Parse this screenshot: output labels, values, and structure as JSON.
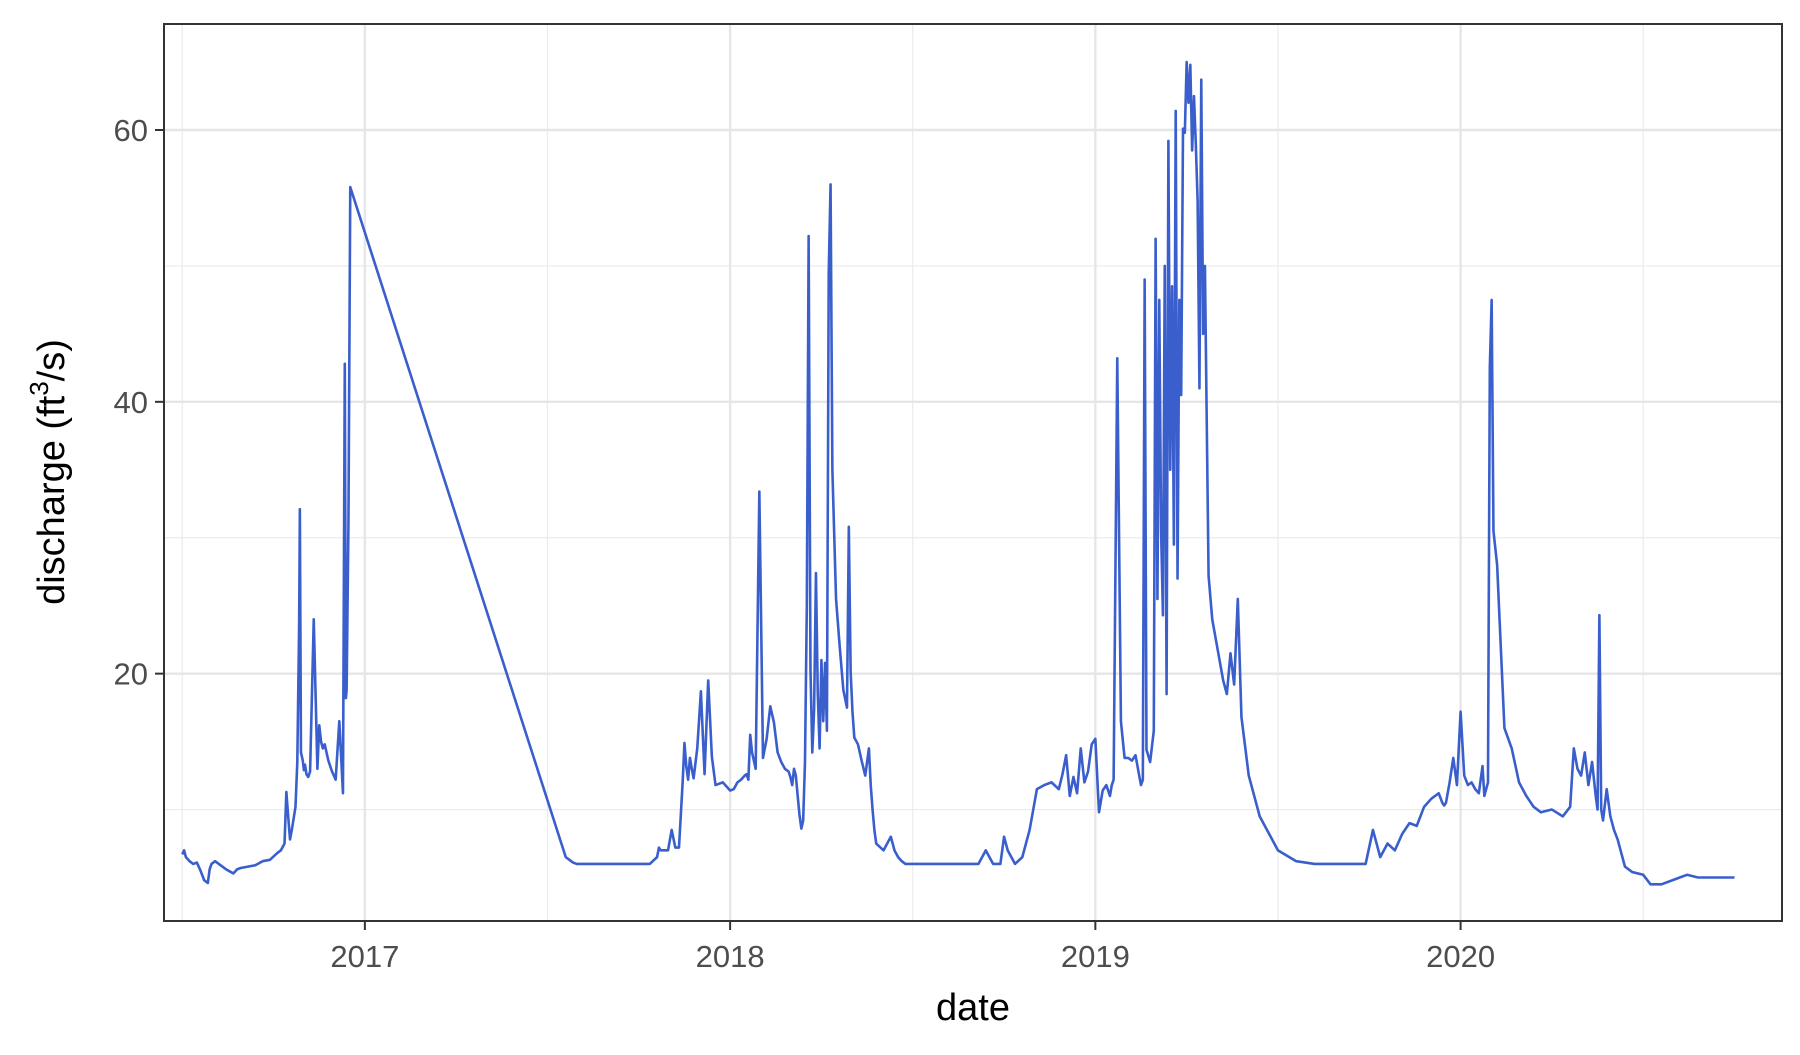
{
  "chart_data": {
    "type": "line",
    "xlabel": "date",
    "ylabel_main": "discharge (ft",
    "ylabel_sup": "3",
    "ylabel_tail": "/s)",
    "x_ticks": [
      "2017",
      "2018",
      "2019",
      "2020"
    ],
    "y_ticks": [
      "20",
      "40",
      "60"
    ],
    "xlim": [
      2016.45,
      2020.88
    ],
    "ylim": [
      1.8,
      67.8
    ],
    "grid": true,
    "legend": "none",
    "line_color": "#3a5fcd",
    "x": [
      2016.5,
      2016.505,
      2016.51,
      2016.52,
      2016.53,
      2016.54,
      2016.55,
      2016.56,
      2016.57,
      2016.575,
      2016.58,
      2016.59,
      2016.6,
      2016.62,
      2016.64,
      2016.65,
      2016.66,
      2016.68,
      2016.7,
      2016.72,
      2016.74,
      2016.76,
      2016.77,
      2016.78,
      2016.785,
      2016.79,
      2016.795,
      2016.8,
      2016.81,
      2016.815,
      2016.82,
      2016.822,
      2016.825,
      2016.83,
      2016.833,
      2016.836,
      2016.84,
      2016.845,
      2016.85,
      2016.86,
      2016.87,
      2016.875,
      2016.88,
      2016.885,
      2016.89,
      2016.9,
      2016.91,
      2016.92,
      2016.93,
      2016.94,
      2016.945,
      2016.948,
      2016.95,
      2016.955,
      2016.96,
      2017.55,
      2017.56,
      2017.57,
      2017.58,
      2017.6,
      2017.65,
      2017.7,
      2017.75,
      2017.78,
      2017.8,
      2017.805,
      2017.81,
      2017.82,
      2017.83,
      2017.84,
      2017.85,
      2017.86,
      2017.87,
      2017.875,
      2017.88,
      2017.885,
      2017.89,
      2017.895,
      2017.9,
      2017.91,
      2017.92,
      2017.93,
      2017.94,
      2017.95,
      2017.96,
      2017.98,
      2018.0,
      2018.01,
      2018.02,
      2018.03,
      2018.04,
      2018.045,
      2018.05,
      2018.055,
      2018.06,
      2018.07,
      2018.08,
      2018.09,
      2018.1,
      2018.11,
      2018.12,
      2018.13,
      2018.14,
      2018.15,
      2018.16,
      2018.165,
      2018.17,
      2018.175,
      2018.18,
      2018.185,
      2018.19,
      2018.195,
      2018.2,
      2018.205,
      2018.21,
      2018.215,
      2018.22,
      2018.225,
      2018.23,
      2018.235,
      2018.24,
      2018.245,
      2018.25,
      2018.255,
      2018.26,
      2018.265,
      2018.27,
      2018.275,
      2018.28,
      2018.29,
      2018.3,
      2018.31,
      2018.32,
      2018.325,
      2018.33,
      2018.335,
      2018.34,
      2018.35,
      2018.36,
      2018.37,
      2018.38,
      2018.385,
      2018.39,
      2018.395,
      2018.4,
      2018.42,
      2018.44,
      2018.45,
      2018.46,
      2018.47,
      2018.48,
      2018.5,
      2018.52,
      2018.55,
      2018.6,
      2018.65,
      2018.68,
      2018.7,
      2018.72,
      2018.74,
      2018.75,
      2018.76,
      2018.78,
      2018.8,
      2018.82,
      2018.84,
      2018.86,
      2018.88,
      2018.9,
      2018.91,
      2018.92,
      2018.93,
      2018.94,
      2018.95,
      2018.96,
      2018.97,
      2018.98,
      2018.99,
      2019.0,
      2019.01,
      2019.02,
      2019.03,
      2019.04,
      2019.045,
      2019.05,
      2019.06,
      2019.07,
      2019.08,
      2019.09,
      2019.1,
      2019.11,
      2019.12,
      2019.125,
      2019.13,
      2019.135,
      2019.14,
      2019.15,
      2019.16,
      2019.165,
      2019.17,
      2019.175,
      2019.18,
      2019.185,
      2019.19,
      2019.195,
      2019.2,
      2019.205,
      2019.21,
      2019.215,
      2019.22,
      2019.225,
      2019.23,
      2019.235,
      2019.24,
      2019.245,
      2019.25,
      2019.255,
      2019.26,
      2019.265,
      2019.27,
      2019.275,
      2019.28,
      2019.285,
      2019.29,
      2019.295,
      2019.3,
      2019.305,
      2019.31,
      2019.32,
      2019.33,
      2019.34,
      2019.35,
      2019.36,
      2019.37,
      2019.38,
      2019.39,
      2019.4,
      2019.42,
      2019.45,
      2019.48,
      2019.5,
      2019.55,
      2019.6,
      2019.65,
      2019.7,
      2019.71,
      2019.72,
      2019.74,
      2019.76,
      2019.78,
      2019.8,
      2019.82,
      2019.84,
      2019.86,
      2019.88,
      2019.9,
      2019.92,
      2019.94,
      2019.95,
      2019.955,
      2019.96,
      2019.97,
      2019.98,
      2019.99,
      2020.0,
      2020.01,
      2020.02,
      2020.03,
      2020.04,
      2020.05,
      2020.06,
      2020.065,
      2020.07,
      2020.075,
      2020.08,
      2020.085,
      2020.09,
      2020.1,
      2020.12,
      2020.14,
      2020.16,
      2020.18,
      2020.2,
      2020.22,
      2020.25,
      2020.28,
      2020.3,
      2020.31,
      2020.32,
      2020.33,
      2020.34,
      2020.35,
      2020.36,
      2020.37,
      2020.375,
      2020.38,
      2020.385,
      2020.39,
      2020.4,
      2020.41,
      2020.42,
      2020.43,
      2020.44,
      2020.45,
      2020.47,
      2020.5,
      2020.52,
      2020.55,
      2020.58,
      2020.6,
      2020.62,
      2020.65,
      2020.7,
      2020.75
    ],
    "y": [
      6.7,
      7.0,
      6.5,
      6.2,
      6.0,
      6.1,
      5.5,
      4.8,
      4.6,
      5.6,
      6.0,
      6.2,
      6.0,
      5.6,
      5.3,
      5.6,
      5.7,
      5.8,
      5.9,
      6.2,
      6.3,
      6.8,
      7.0,
      7.5,
      11.3,
      9.5,
      7.8,
      8.5,
      10.2,
      13.5,
      23.6,
      32.1,
      14.2,
      13.6,
      12.9,
      13.3,
      12.6,
      12.4,
      12.8,
      24.0,
      13.0,
      16.2,
      15.0,
      14.5,
      14.8,
      13.6,
      12.8,
      12.2,
      16.5,
      11.2,
      42.8,
      18.2,
      18.8,
      31.0,
      55.8,
      6.5,
      6.3,
      6.1,
      6.0,
      6.0,
      6.0,
      6.0,
      6.0,
      6.0,
      6.5,
      7.2,
      7.0,
      7.0,
      7.0,
      8.5,
      7.2,
      7.2,
      12.0,
      14.9,
      13.2,
      12.2,
      13.8,
      13.0,
      12.3,
      14.5,
      18.7,
      12.6,
      19.5,
      13.9,
      11.8,
      12.0,
      11.4,
      11.5,
      12.0,
      12.2,
      12.5,
      12.6,
      12.2,
      15.5,
      14.2,
      13.0,
      33.4,
      13.8,
      15.2,
      17.6,
      16.4,
      14.2,
      13.5,
      13.0,
      12.8,
      12.4,
      11.8,
      13.0,
      12.5,
      11.0,
      9.6,
      8.6,
      9.2,
      13.5,
      25.0,
      52.2,
      20.3,
      14.2,
      17.4,
      27.4,
      18.5,
      14.5,
      21.0,
      16.5,
      20.8,
      15.8,
      49.5,
      56.0,
      35.0,
      25.5,
      22.0,
      18.8,
      17.5,
      30.8,
      20.1,
      17.2,
      15.3,
      14.8,
      13.6,
      12.5,
      14.5,
      11.8,
      10.0,
      8.5,
      7.5,
      7.0,
      8.0,
      7.0,
      6.5,
      6.2,
      6.0,
      6.0,
      6.0,
      6.0,
      6.0,
      6.0,
      6.0,
      7.0,
      6.0,
      6.0,
      8.0,
      7.0,
      6.0,
      6.5,
      8.5,
      11.5,
      11.8,
      12.0,
      11.5,
      12.6,
      14.0,
      11.0,
      12.4,
      11.2,
      14.5,
      12.0,
      12.8,
      14.8,
      15.2,
      9.8,
      11.4,
      11.8,
      11.0,
      11.8,
      12.2,
      43.2,
      16.5,
      13.8,
      13.8,
      13.6,
      14.0,
      12.5,
      11.8,
      12.2,
      49.0,
      14.4,
      13.5,
      15.8,
      52.0,
      25.5,
      47.5,
      30.5,
      24.3,
      50.0,
      18.5,
      59.2,
      35.0,
      48.5,
      29.5,
      61.4,
      27.0,
      47.5,
      40.5,
      60.1,
      59.8,
      65.0,
      62.0,
      64.8,
      58.5,
      62.5,
      59.0,
      54.8,
      41.0,
      63.7,
      45.0,
      50.0,
      38.5,
      27.2,
      24.0,
      22.5,
      21.0,
      19.5,
      18.5,
      21.5,
      19.2,
      25.5,
      16.8,
      12.5,
      9.5,
      8.0,
      7.0,
      6.2,
      6.0,
      6.0,
      6.0,
      6.0,
      6.0,
      6.0,
      8.5,
      6.5,
      7.5,
      7.0,
      8.2,
      9.0,
      8.8,
      10.2,
      10.8,
      11.2,
      10.5,
      10.3,
      10.5,
      12.0,
      13.8,
      11.8,
      17.2,
      12.5,
      11.8,
      12.0,
      11.5,
      11.2,
      13.2,
      11.0,
      11.5,
      12.0,
      42.5,
      47.5,
      30.5,
      28.0,
      16.0,
      14.5,
      12.0,
      11.0,
      10.2,
      9.8,
      10.0,
      9.5,
      10.2,
      14.5,
      13.0,
      12.5,
      14.2,
      11.8,
      13.5,
      11.0,
      10.0,
      24.3,
      10.0,
      9.2,
      11.5,
      9.5,
      8.5,
      7.8,
      6.8,
      5.8,
      5.4,
      5.2,
      4.5,
      4.5,
      4.8,
      5.0,
      5.2,
      5.0,
      5.0,
      5.0
    ]
  }
}
